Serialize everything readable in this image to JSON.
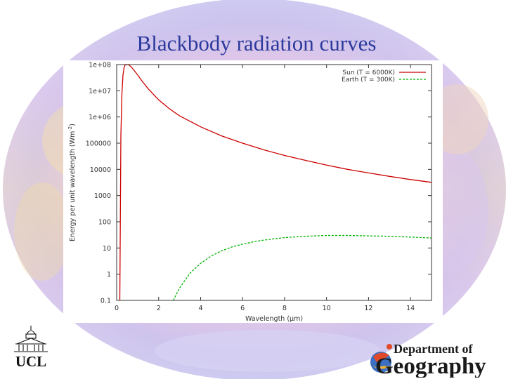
{
  "slide": {
    "title": "Blackbody radiation curves",
    "logo_left_text": "UCL",
    "logo_right_line1": "Department of",
    "logo_right_line2": "Geography"
  },
  "colors": {
    "title": "#2b3a9c",
    "sun_series": "#cc0000",
    "earth_series": "#00b400"
  },
  "chart_data": {
    "type": "line",
    "title": "",
    "xlabel": "Wavelength (μm)",
    "ylabel": "Energy per unit wavelength (Wm",
    "ylabel_superscript": "-2",
    "ylabel_end": ")",
    "xlim": [
      0,
      15
    ],
    "ylim": [
      0.1,
      100000000
    ],
    "y_scale": "log",
    "grid": false,
    "legend_position": "top-right",
    "x_ticks": [
      0,
      2,
      4,
      6,
      8,
      10,
      12,
      14
    ],
    "x_tick_labels": [
      "0",
      "2",
      "4",
      "6",
      "8",
      "10",
      "12",
      "14"
    ],
    "y_ticks": [
      0.1,
      1,
      10,
      100,
      1000,
      10000,
      100000,
      1000000,
      10000000,
      100000000
    ],
    "y_tick_labels": [
      "0.1",
      "1",
      "10",
      "100",
      "1000",
      "10000",
      "100000",
      "1e+06",
      "1e+07",
      "1e+08"
    ],
    "series": [
      {
        "name": "Sun (T = 6000K)",
        "color": "#cc0000",
        "dash": "solid",
        "x": [
          0.15,
          0.2,
          0.25,
          0.3,
          0.35,
          0.4,
          0.5,
          0.6,
          0.7,
          0.8,
          1.0,
          1.2,
          1.5,
          2.0,
          2.5,
          3,
          4,
          5,
          6,
          7,
          8,
          9,
          10,
          11,
          12,
          13,
          14,
          15
        ],
        "y": [
          0.1,
          200000,
          8000000,
          40000000,
          75000000,
          95000000,
          100000000,
          95000000,
          80000000,
          65000000,
          40000000,
          24000000,
          12000000,
          4500000,
          2100000,
          1100000,
          420000,
          190000,
          100000,
          56000,
          34000,
          22000,
          14500,
          10000,
          7300,
          5400,
          4100,
          3200
        ]
      },
      {
        "name": "Earth (T = 300K)",
        "color": "#00b400",
        "dash": "dashed",
        "x": [
          2.7,
          3,
          3.5,
          4,
          4.5,
          5,
          5.5,
          6,
          6.5,
          7,
          8,
          9,
          10,
          11,
          12,
          13,
          14,
          15
        ],
        "y": [
          0.1,
          0.3,
          1.1,
          2.6,
          4.9,
          7.8,
          11,
          14,
          17,
          20,
          25,
          28,
          30,
          30,
          29,
          28,
          26,
          24
        ]
      }
    ]
  }
}
